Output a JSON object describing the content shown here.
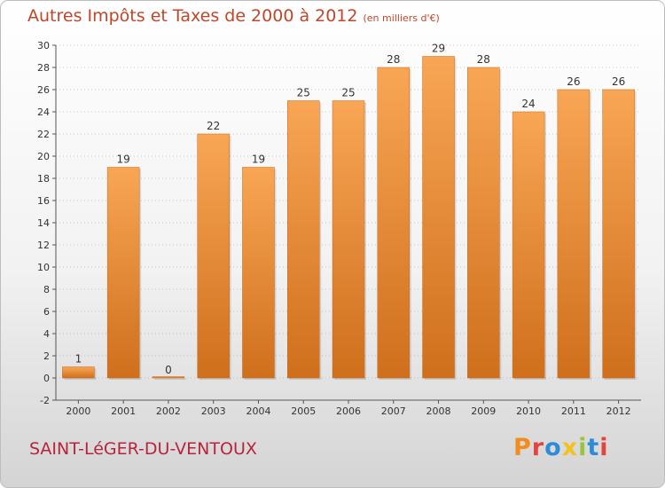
{
  "title": {
    "main": "Autres Impôts et Taxes de 2000 à 2012",
    "sub": "(en milliers d'€)"
  },
  "commune": "SAINT-LéGER-DU-VENTOUX",
  "logo": {
    "text": "Proxiti",
    "colors": [
      "#f28c1e",
      "#e4443e",
      "#2e8bd8",
      "#f2c21e",
      "#9ac43c",
      "#2e8bd8",
      "#e4443e"
    ]
  },
  "colors": {
    "title": "#c0462a",
    "commune": "#b8243e",
    "bar_light": "#f8a655",
    "bar_dark": "#cf6f1c",
    "axis_text": "#333333",
    "grid": "#999999"
  },
  "chart_data": {
    "type": "bar",
    "categories": [
      "2000",
      "2001",
      "2002",
      "2003",
      "2004",
      "2005",
      "2006",
      "2007",
      "2008",
      "2009",
      "2010",
      "2011",
      "2012"
    ],
    "values": [
      1,
      19,
      0,
      22,
      19,
      25,
      25,
      28,
      29,
      28,
      24,
      26,
      26
    ],
    "value_labels": [
      "1",
      "19",
      "0",
      "22",
      "19",
      "25",
      "25",
      "28",
      "29",
      "28",
      "24",
      "26",
      "26"
    ],
    "ylim": [
      -2,
      30
    ],
    "yticks": [
      -2,
      0,
      2,
      4,
      6,
      8,
      10,
      12,
      14,
      16,
      18,
      20,
      22,
      24,
      26,
      28,
      30
    ],
    "grid": true,
    "legend": "none"
  }
}
